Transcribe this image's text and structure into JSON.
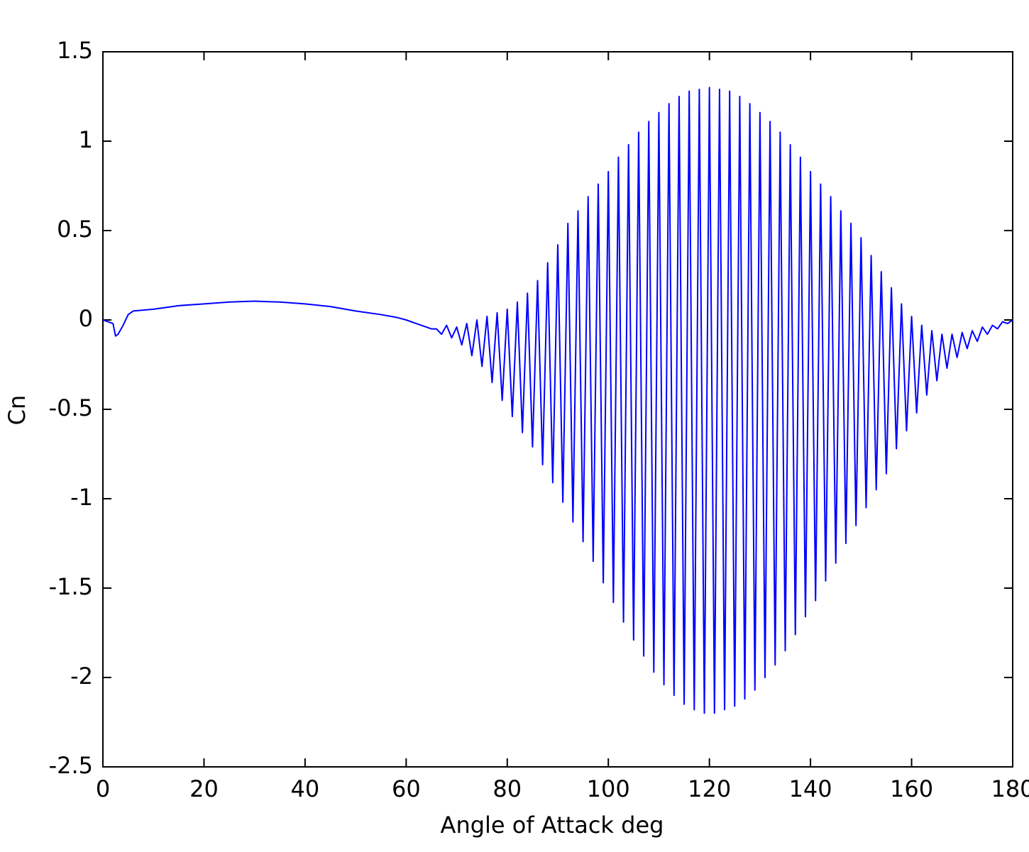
{
  "chart_data": {
    "type": "line",
    "xlabel": "Angle of Attack  deg",
    "ylabel": "Cn",
    "color": "#0000ff",
    "xlim": [
      0,
      180
    ],
    "xticks": [
      0,
      20,
      40,
      60,
      80,
      100,
      120,
      140,
      160,
      180
    ],
    "ylim": [
      -2.5,
      1.5
    ],
    "yticks": [
      -2.5,
      -2,
      -1.5,
      -1,
      -0.5,
      0,
      0.5,
      1,
      1.5
    ],
    "x": [
      0,
      1,
      2,
      2.5,
      3,
      4,
      5,
      6,
      10,
      15,
      20,
      25,
      30,
      35,
      40,
      45,
      50,
      55,
      58,
      60,
      62,
      64,
      65,
      66,
      67,
      68,
      69,
      70,
      71,
      72,
      73,
      74,
      75,
      76,
      77,
      78,
      79,
      80,
      81,
      82,
      83,
      84,
      85,
      86,
      87,
      88,
      89,
      90,
      91,
      92,
      93,
      94,
      95,
      96,
      97,
      98,
      99,
      100,
      101,
      102,
      103,
      104,
      105,
      106,
      107,
      108,
      109,
      110,
      111,
      112,
      113,
      114,
      115,
      116,
      117,
      118,
      119,
      120,
      121,
      122,
      123,
      124,
      125,
      126,
      127,
      128,
      129,
      130,
      131,
      132,
      133,
      134,
      135,
      136,
      137,
      138,
      139,
      140,
      141,
      142,
      143,
      144,
      145,
      146,
      147,
      148,
      149,
      150,
      151,
      152,
      153,
      154,
      155,
      156,
      157,
      158,
      159,
      160,
      161,
      162,
      163,
      164,
      165,
      166,
      167,
      168,
      169,
      170,
      171,
      172,
      173,
      174,
      175,
      176,
      177,
      178,
      179,
      180
    ],
    "values": [
      0,
      -0.01,
      -0.02,
      -0.09,
      -0.08,
      -0.03,
      0.03,
      0.05,
      0.06,
      0.08,
      0.09,
      0.1,
      0.105,
      0.1,
      0.09,
      0.075,
      0.05,
      0.03,
      0.015,
      0.0,
      -0.02,
      -0.04,
      -0.05,
      -0.05,
      -0.08,
      -0.03,
      -0.1,
      -0.04,
      -0.14,
      -0.02,
      -0.2,
      0.0,
      -0.26,
      0.02,
      -0.35,
      0.04,
      -0.45,
      0.06,
      -0.54,
      0.1,
      -0.63,
      0.15,
      -0.71,
      0.22,
      -0.81,
      0.32,
      -0.91,
      0.42,
      -1.02,
      0.54,
      -1.13,
      0.61,
      -1.24,
      0.69,
      -1.35,
      0.76,
      -1.47,
      0.83,
      -1.58,
      0.91,
      -1.69,
      0.98,
      -1.79,
      1.05,
      -1.88,
      1.11,
      -1.97,
      1.16,
      -2.04,
      1.21,
      -2.1,
      1.25,
      -2.15,
      1.28,
      -2.18,
      1.29,
      -2.2,
      1.3,
      -2.2,
      1.29,
      -2.18,
      1.28,
      -2.16,
      1.25,
      -2.12,
      1.21,
      -2.07,
      1.16,
      -2.0,
      1.11,
      -1.93,
      1.05,
      -1.85,
      0.98,
      -1.76,
      0.91,
      -1.66,
      0.83,
      -1.57,
      0.76,
      -1.46,
      0.69,
      -1.36,
      0.61,
      -1.25,
      0.54,
      -1.15,
      0.46,
      -1.05,
      0.36,
      -0.95,
      0.27,
      -0.86,
      0.18,
      -0.72,
      0.09,
      -0.62,
      0.02,
      -0.52,
      -0.03,
      -0.42,
      -0.06,
      -0.34,
      -0.08,
      -0.27,
      -0.08,
      -0.21,
      -0.07,
      -0.16,
      -0.06,
      -0.12,
      -0.04,
      -0.08,
      -0.03,
      -0.05,
      -0.01,
      -0.02,
      0
    ]
  }
}
